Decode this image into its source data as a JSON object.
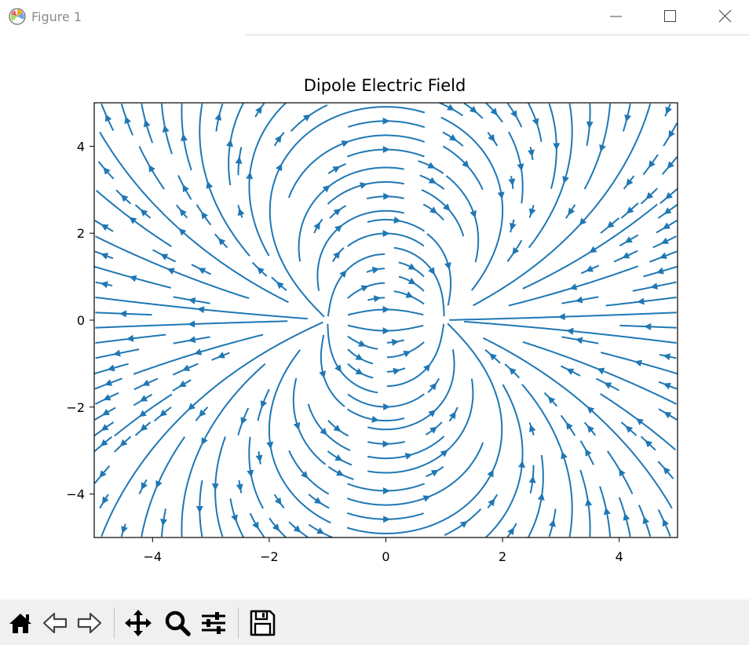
{
  "window": {
    "title": "Figure 1",
    "controls": [
      "minimize",
      "maximize",
      "close"
    ]
  },
  "toolbar": {
    "buttons": [
      {
        "name": "home",
        "icon": "home-icon"
      },
      {
        "name": "back",
        "icon": "arrow-left-icon"
      },
      {
        "name": "forward",
        "icon": "arrow-right-icon"
      },
      {
        "name": "pan",
        "icon": "move-icon"
      },
      {
        "name": "zoom",
        "icon": "magnifier-icon"
      },
      {
        "name": "configure-subplots",
        "icon": "sliders-icon"
      },
      {
        "name": "save",
        "icon": "floppy-disk-icon"
      }
    ]
  },
  "chart_data": {
    "type": "streamplot",
    "title": "Dipole Electric Field",
    "xlabel": "",
    "ylabel": "",
    "xlim": [
      -5,
      5
    ],
    "ylim": [
      -5,
      5
    ],
    "xticks": [
      -4,
      -2,
      0,
      2,
      4
    ],
    "yticks": [
      -4,
      -2,
      0,
      2,
      4
    ],
    "xtick_labels": [
      "−4",
      "−2",
      "0",
      "2",
      "4"
    ],
    "ytick_labels": [
      "−4",
      "−2",
      "0",
      "2",
      "4"
    ],
    "grid": false,
    "legend": "none",
    "color": "#1f77b4",
    "charges": [
      {
        "x": -1,
        "y": 0,
        "q": 1
      },
      {
        "x": 1,
        "y": 0,
        "q": -1
      }
    ]
  }
}
